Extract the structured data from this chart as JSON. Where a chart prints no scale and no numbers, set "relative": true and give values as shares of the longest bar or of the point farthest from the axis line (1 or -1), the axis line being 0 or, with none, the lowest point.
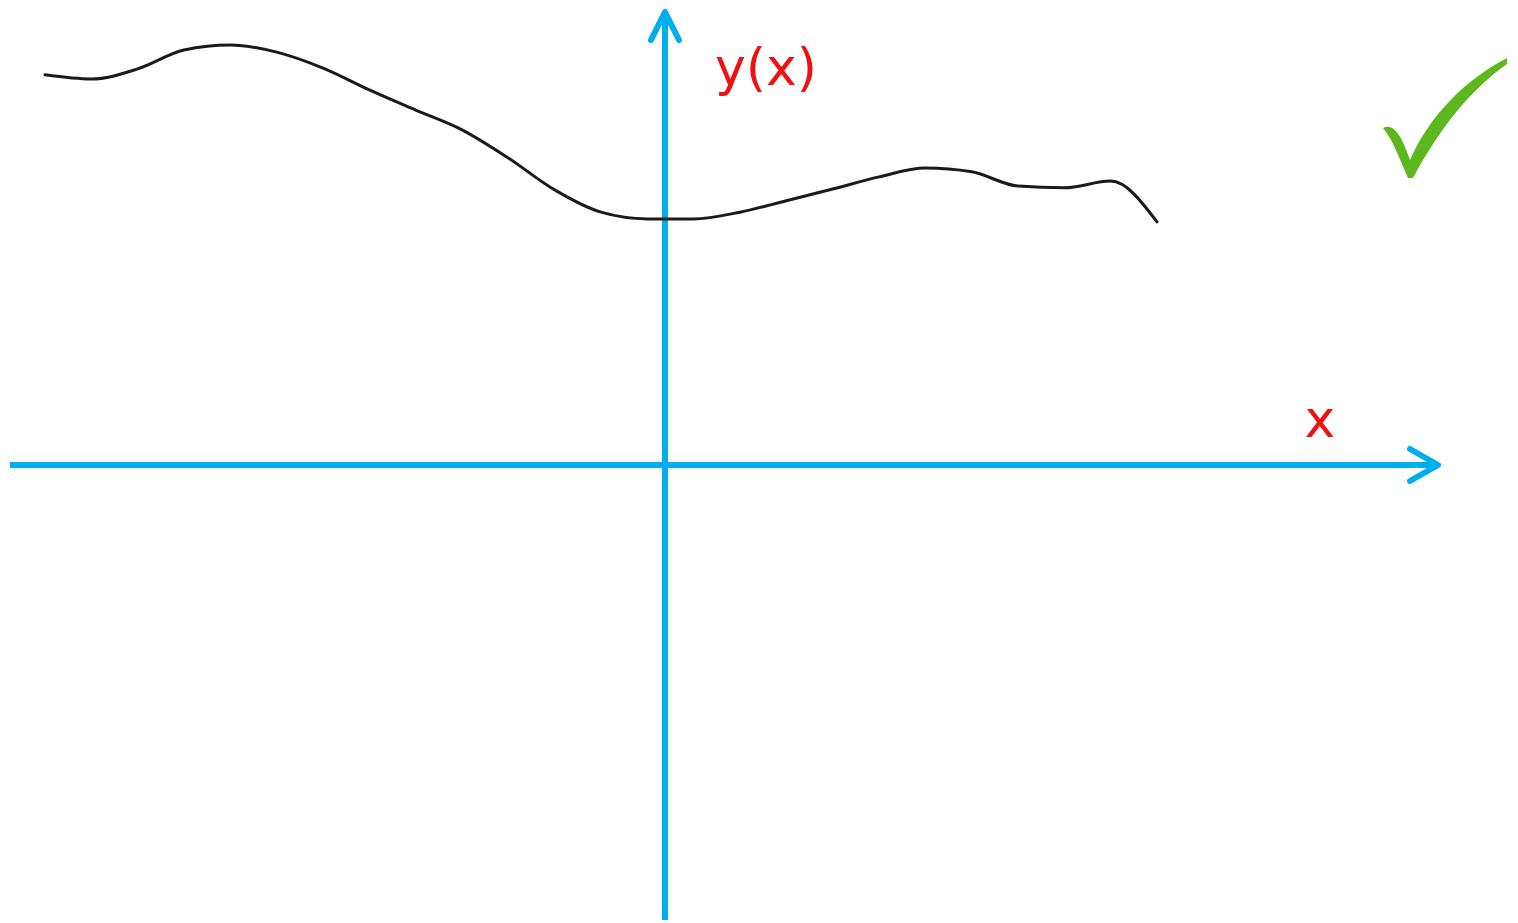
{
  "chart_data": {
    "type": "line",
    "xlabel": "x",
    "ylabel": "y(x)",
    "relative": true,
    "categories": [
      null,
      null,
      null,
      null,
      null,
      null,
      null,
      null,
      null,
      null,
      null,
      null,
      null,
      null,
      null,
      null,
      null,
      null,
      null,
      null,
      null,
      null,
      null,
      null,
      null
    ],
    "series": [
      {
        "color": "#1a1a1a",
        "values": [
          0.929,
          0.919,
          0.943,
          0.988,
          1.0,
          0.983,
          0.945,
          0.893,
          0.845,
          0.798,
          0.731,
          0.655,
          0.602,
          0.586,
          0.586,
          0.602,
          0.629,
          0.657,
          0.686,
          0.707,
          0.698,
          0.664,
          0.66,
          0.676,
          0.579
        ]
      }
    ]
  }
}
